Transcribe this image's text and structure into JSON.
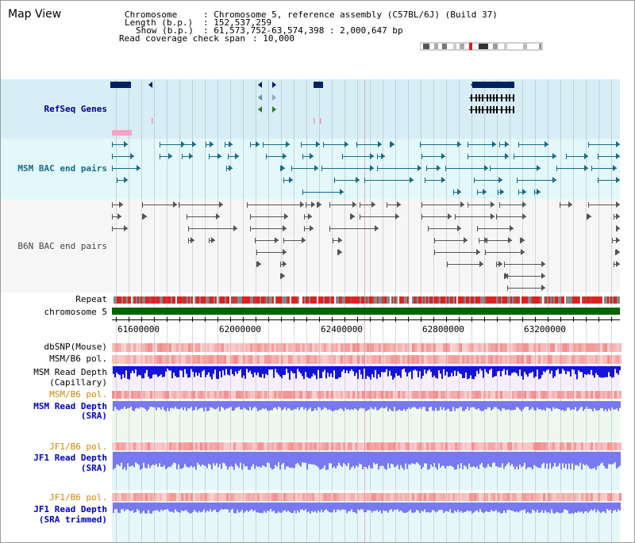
{
  "title": "Map View",
  "header": {
    "chromosome_label": "Chromosome",
    "chromosome_value": ": Chromosome 5, reference assembly (C57BL/6J) (Build 37)",
    "length_label": "Length (b.p.)",
    "length_value": ": 152,537,259",
    "show_label": "Show (b.p.)",
    "show_value": ": 61,573,752-63,574,398 : 2,000,647 bp",
    "coverage_label": "Read coverage check span",
    "coverage_value": ": 10,000"
  },
  "tracks": {
    "refseq": "RefSeq Genes",
    "msm_bac": "MSM BAC end pairs",
    "b6n_bac": "B6N BAC end pairs",
    "repeat": "Repeat",
    "chromosome": "chromosome 5",
    "dbsnp": "dbSNP(Mouse)",
    "msm_b6_pol_1": "MSM/B6 pol.",
    "msm_depth_cap_1": "MSM Read Depth",
    "msm_depth_cap_2": "(Capillary)",
    "msm_b6_pol_2": "MSM/B6 pol.",
    "msm_depth_sra_1": "MSM Read Depth",
    "msm_depth_sra_2": "(SRA)",
    "jf1_b6_pol_1": "JF1/B6 pol.",
    "jf1_depth_sra_1": "JF1 Read Depth",
    "jf1_depth_sra_2": "(SRA)",
    "jf1_b6_pol_2": "JF1/B6 pol.",
    "jf1_depth_trim_1": "JF1 Read Depth",
    "jf1_depth_trim_2": "(SRA trimmed)"
  },
  "axis": {
    "ticks": [
      "61600000",
      "62000000",
      "62400000",
      "62800000",
      "63200000"
    ]
  },
  "colors": {
    "refseq_bg": "#d8eef6",
    "msm_bg": "#e2f8fb",
    "b6n_bg": "#f6f6f6",
    "chromosome_bar": "#006400",
    "gene": "#002060",
    "msm_feature": "#1a6a86",
    "b6n_feature": "#555555",
    "depth_capillary": "#1414d8",
    "depth_sra": "#7878f0",
    "polymorphism": "#f08080"
  }
}
